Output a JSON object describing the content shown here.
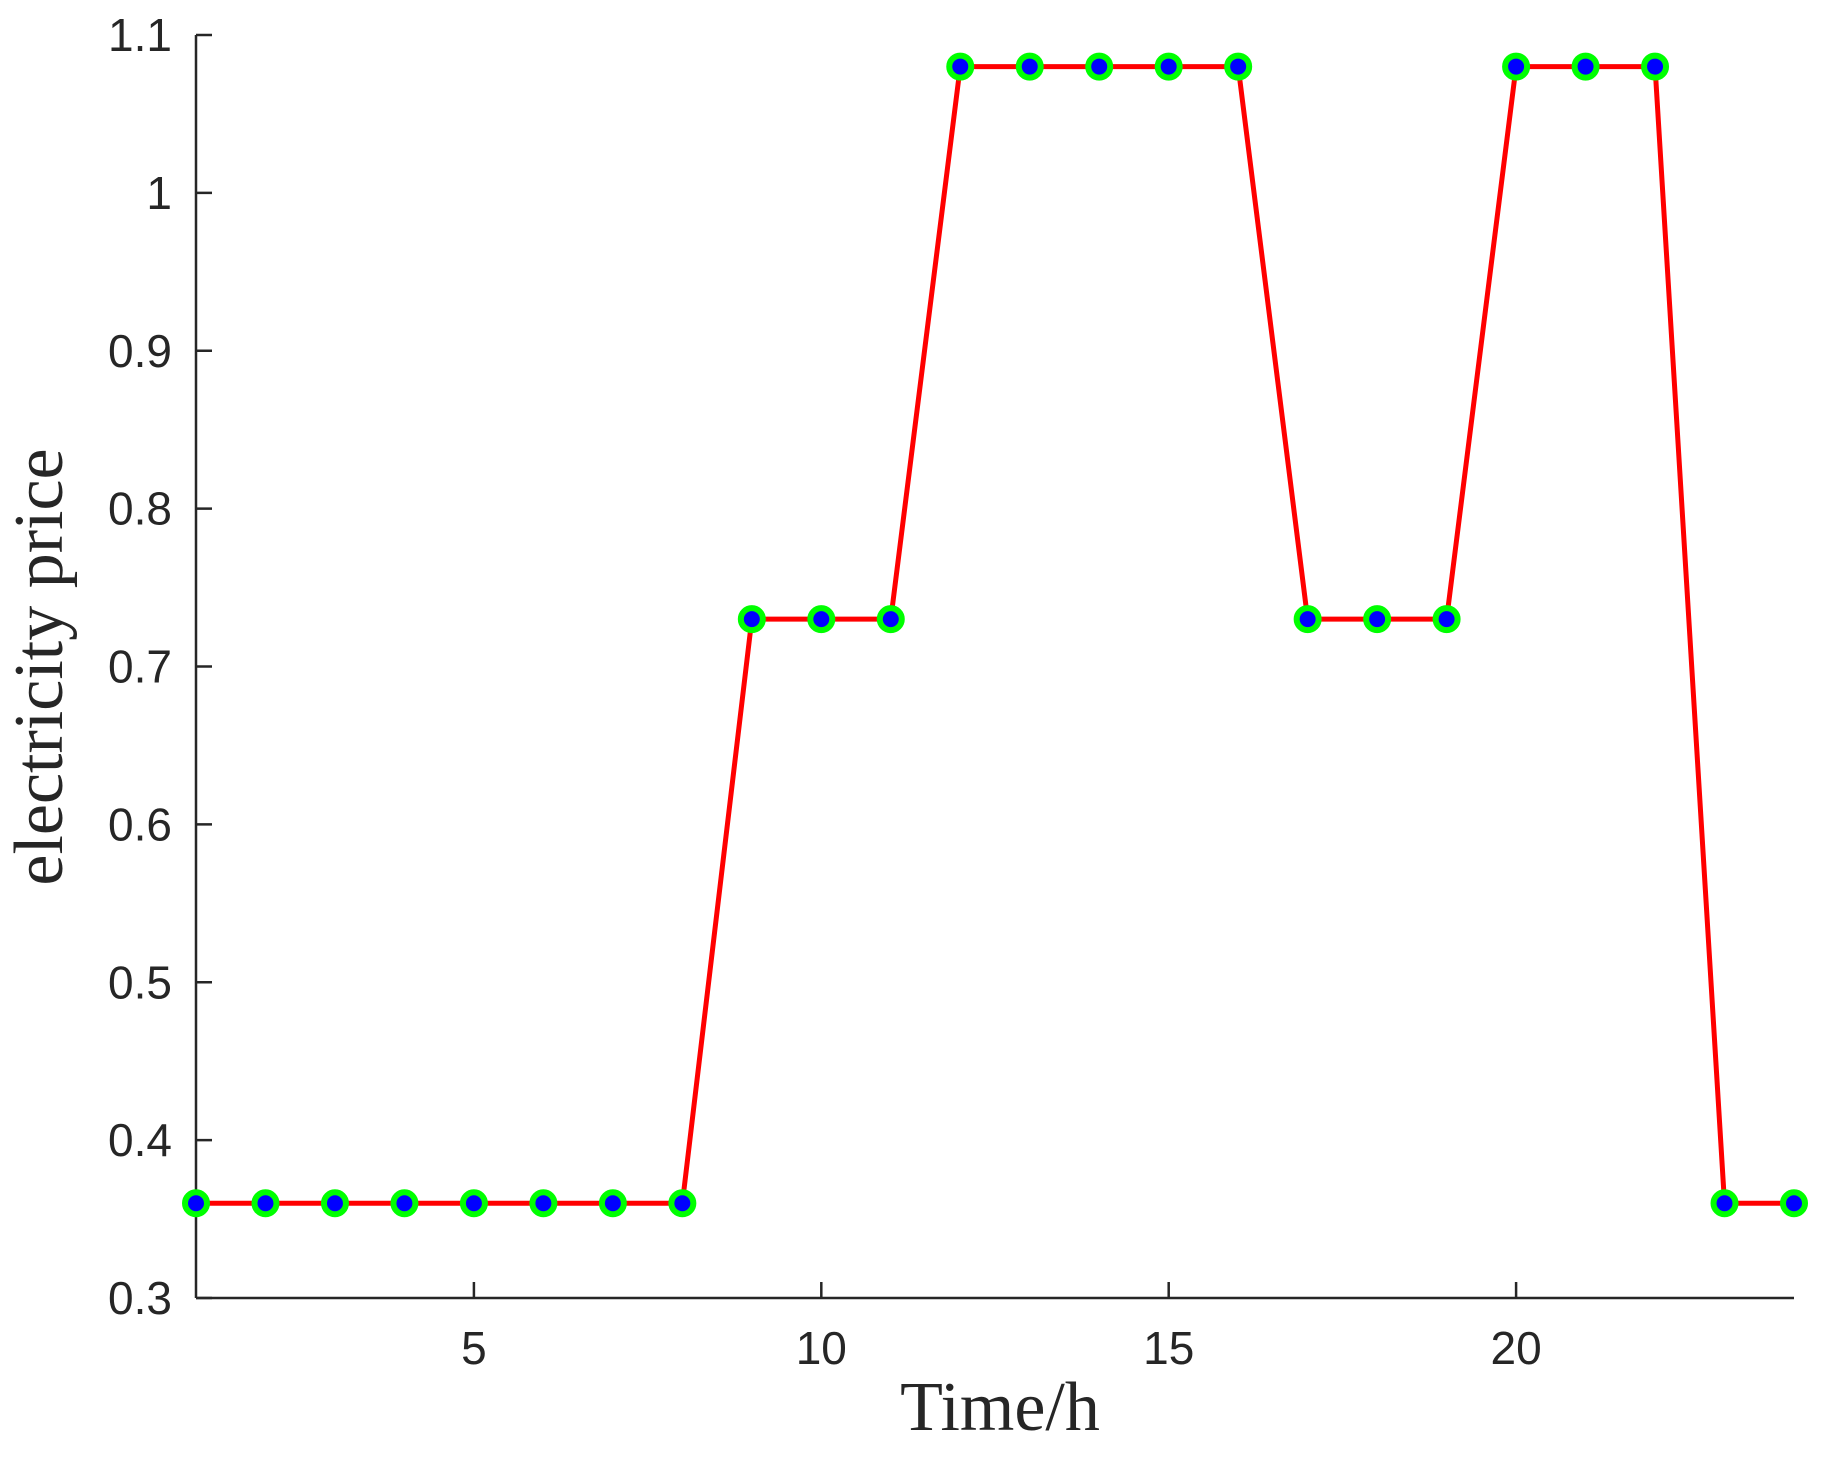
{
  "chart_data": {
    "type": "line",
    "title": "",
    "xlabel": "Time/h",
    "ylabel": "electricity price",
    "xlim": [
      1,
      24
    ],
    "ylim": [
      0.3,
      1.1
    ],
    "x_ticks": [
      5,
      10,
      15,
      20
    ],
    "y_ticks": [
      0.3,
      0.4,
      0.5,
      0.6,
      0.7,
      0.8,
      0.9,
      1,
      1.1
    ],
    "x_tick_labels": [
      "5",
      "10",
      "15",
      "20"
    ],
    "y_tick_labels": [
      "0.3",
      "0.4",
      "0.5",
      "0.6",
      "0.7",
      "0.8",
      "0.9",
      "1",
      "1.1"
    ],
    "grid": false,
    "legend": "none",
    "x": [
      1,
      2,
      3,
      4,
      5,
      6,
      7,
      8,
      9,
      10,
      11,
      12,
      13,
      14,
      15,
      16,
      17,
      18,
      19,
      20,
      21,
      22,
      23,
      24
    ],
    "series": [
      {
        "values": [
          0.36,
          0.36,
          0.36,
          0.36,
          0.36,
          0.36,
          0.36,
          0.36,
          0.73,
          0.73,
          0.73,
          1.08,
          1.08,
          1.08,
          1.08,
          1.08,
          0.73,
          0.73,
          0.73,
          1.08,
          1.08,
          1.08,
          0.36,
          0.36
        ],
        "line_color": "#ff0000",
        "marker_face_color": "#0000ff",
        "marker_edge_color": "#00ff00"
      }
    ]
  }
}
